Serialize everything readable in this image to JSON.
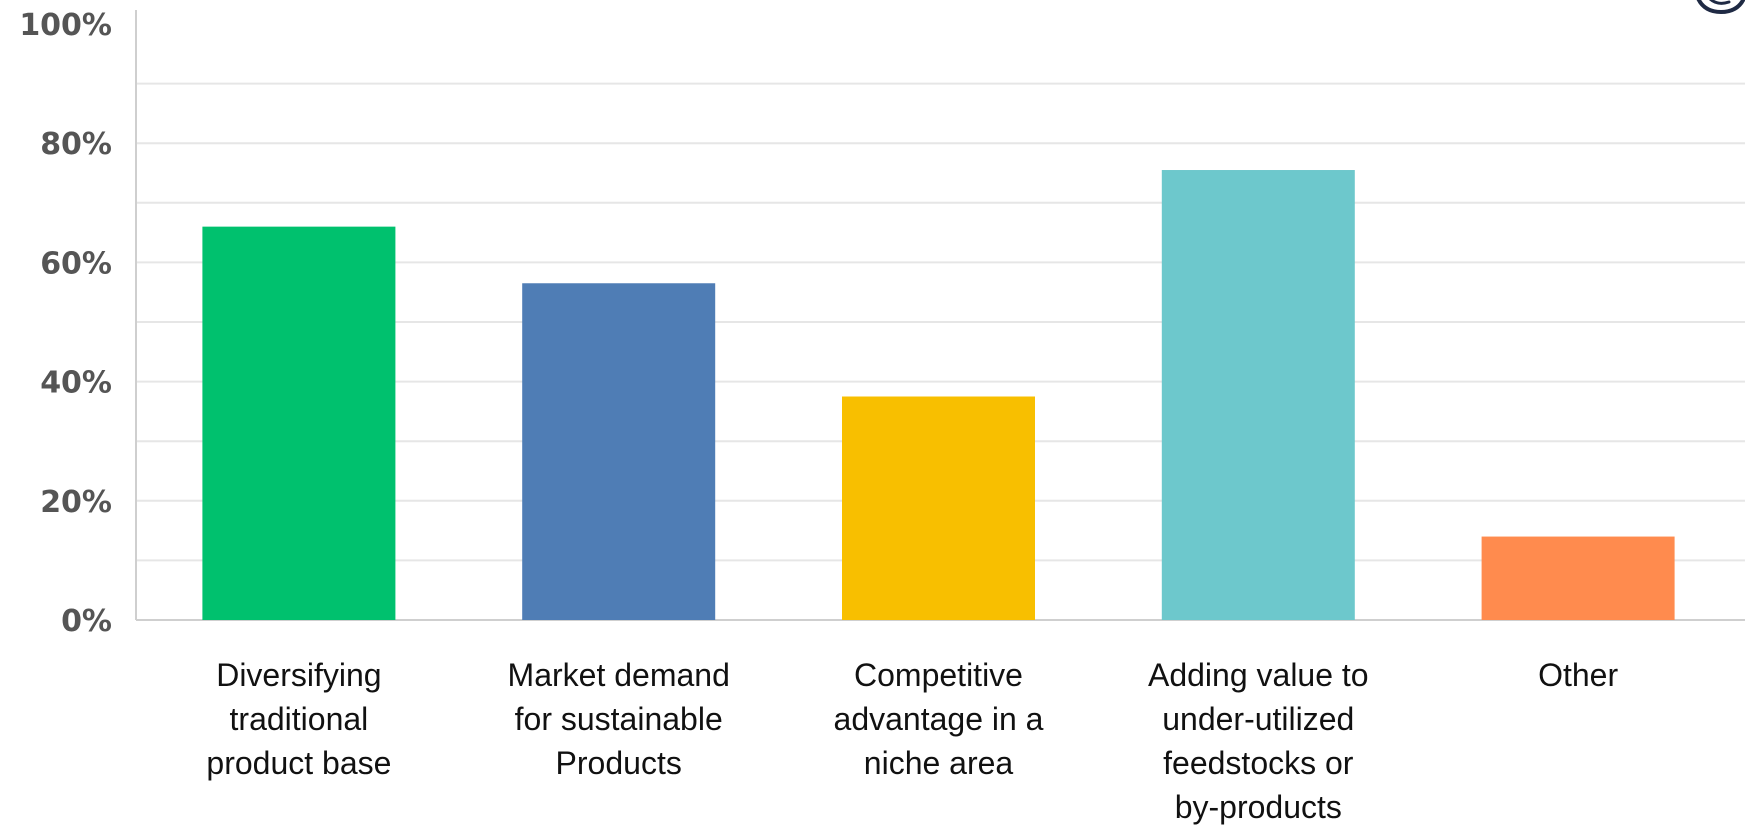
{
  "chart_data": {
    "type": "bar",
    "title": "",
    "xlabel": "",
    "ylabel": "",
    "ylim": [
      0,
      100
    ],
    "yticks": [
      "0%",
      "20%",
      "40%",
      "60%",
      "80%",
      "100%"
    ],
    "grid": true,
    "categories": [
      [
        "Diversifying",
        "traditional",
        "product base"
      ],
      [
        "Market demand",
        "for sustainable",
        "Products"
      ],
      [
        "Competitive",
        "advantage in a",
        "niche area"
      ],
      [
        "Adding value to",
        "under-utilized",
        "feedstocks or",
        "by-products"
      ],
      [
        "Other"
      ]
    ],
    "values": [
      66,
      56.5,
      37.5,
      75.5,
      14
    ],
    "colors": [
      "#00c16e",
      "#4f7db5",
      "#f8bf00",
      "#6dc8cc",
      "#ff8b4e"
    ]
  },
  "logo": {
    "icon": "shield-logo-icon",
    "color": "#1f2a44"
  }
}
